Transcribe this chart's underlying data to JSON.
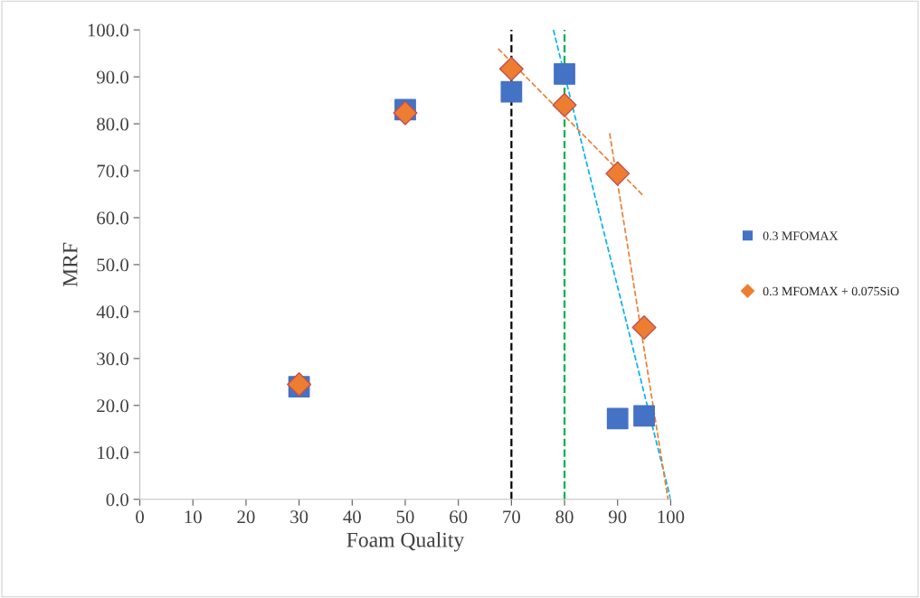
{
  "chart_data": {
    "type": "scatter",
    "xlabel": "Foam Quality",
    "ylabel": "MRF",
    "xlim": [
      0,
      100
    ],
    "xticks": [
      0,
      10,
      20,
      30,
      40,
      50,
      60,
      70,
      80,
      90,
      100
    ],
    "ylim": [
      0,
      100
    ],
    "yticks": [
      {
        "value": 0,
        "label": "0.0"
      },
      {
        "value": 10,
        "label": "10.0"
      },
      {
        "value": 20,
        "label": "20.0"
      },
      {
        "value": 30,
        "label": "30.0"
      },
      {
        "value": 40,
        "label": "40.0"
      },
      {
        "value": 50,
        "label": "50.0"
      },
      {
        "value": 60,
        "label": "60.0"
      },
      {
        "value": 70,
        "label": "70.0"
      },
      {
        "value": 80,
        "label": "80.0"
      },
      {
        "value": 90,
        "label": "90.0"
      },
      {
        "value": 100,
        "label": "100.0"
      }
    ],
    "series": [
      {
        "name": "0.3 MFOMAX",
        "color": "#4472c4",
        "marker": "square",
        "x": [
          30,
          50,
          70,
          80,
          90,
          95
        ],
        "values": [
          24,
          83,
          86.8,
          90.6,
          17.2,
          17.8
        ]
      },
      {
        "name": "0.3 MFOMAX + 0.075SiO",
        "color": "#ed7d31",
        "marker": "diamond",
        "x": [
          30,
          50,
          70,
          80,
          90,
          95
        ],
        "values": [
          24.5,
          82.3,
          91.7,
          84,
          69.4,
          36.6
        ]
      },
      {
        "type": "line",
        "color": "#00b0f0",
        "line_style": "dashed",
        "marker": "none",
        "x": [
          77.9,
          100
        ],
        "values": [
          100,
          0
        ]
      },
      {
        "type": "line",
        "color": "#ed7d31",
        "line_style": "dashed",
        "marker": "none",
        "x": [
          67.5,
          95
        ],
        "values": [
          96,
          64.5
        ]
      },
      {
        "type": "line",
        "color": "#ed7d31",
        "line_style": "dashed",
        "marker": "none",
        "x": [
          88.5,
          99.5
        ],
        "values": [
          78,
          0
        ]
      }
    ],
    "ref_lines": [
      {
        "axis": "x",
        "value": 70,
        "color": "#000000",
        "line_style": "dashed"
      },
      {
        "axis": "x",
        "value": 80,
        "color": "#00b050",
        "line_style": "dashed"
      }
    ],
    "grid": false,
    "legend": "right"
  }
}
